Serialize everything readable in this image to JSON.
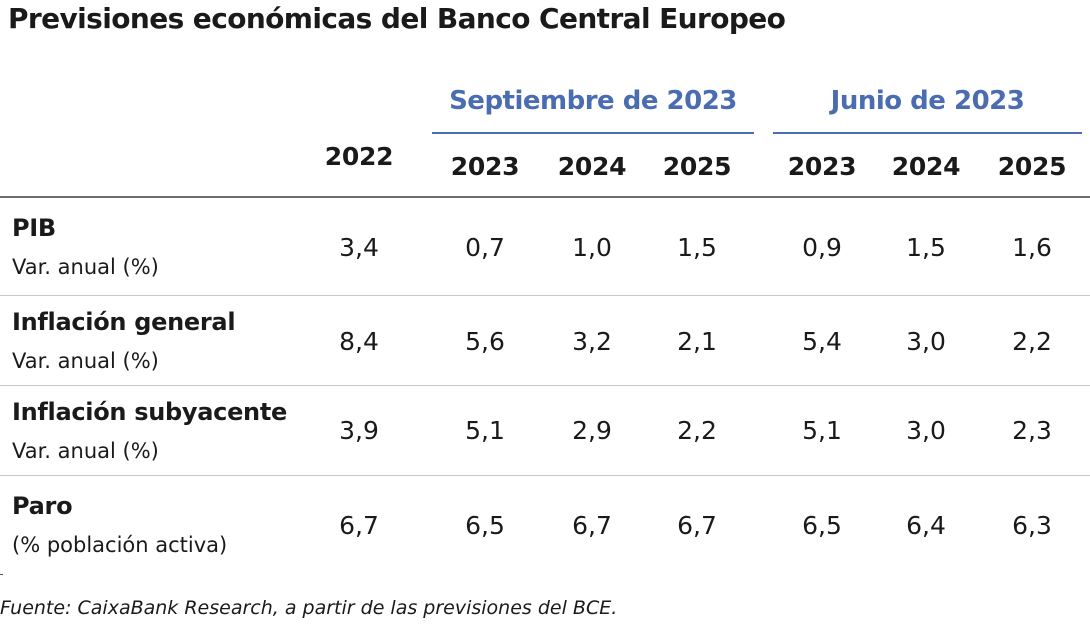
{
  "title": "Previsiones económicas del Banco Central Europeo",
  "groups": {
    "september": "Septiembre de 2023",
    "june": "Junio de 2023"
  },
  "columns": [
    "2022",
    "2023",
    "2024",
    "2025",
    "2023",
    "2024",
    "2025"
  ],
  "rows": [
    {
      "label": "PIB",
      "sub": "Var. anual (%)",
      "values": [
        "3,4",
        "0,7",
        "1,0",
        "1,5",
        "0,9",
        "1,5",
        "1,6"
      ]
    },
    {
      "label": "Inflación general",
      "sub": "Var. anual (%)",
      "values": [
        "8,4",
        "5,6",
        "3,2",
        "2,1",
        "5,4",
        "3,0",
        "2,2"
      ]
    },
    {
      "label": "Inflación subyacente",
      "sub": "Var. anual (%)",
      "values": [
        "3,9",
        "5,1",
        "2,9",
        "2,2",
        "5,1",
        "3,0",
        "2,3"
      ]
    },
    {
      "label": "Paro",
      "sub": "(% población activa)",
      "values": [
        "6,7",
        "6,5",
        "6,7",
        "6,7",
        "6,5",
        "6,4",
        "6,3"
      ]
    }
  ],
  "footnote": "Fuente: CaixaBank Research, a partir de las previsiones del BCE.",
  "colors": {
    "accent": "#4a6cb0"
  }
}
